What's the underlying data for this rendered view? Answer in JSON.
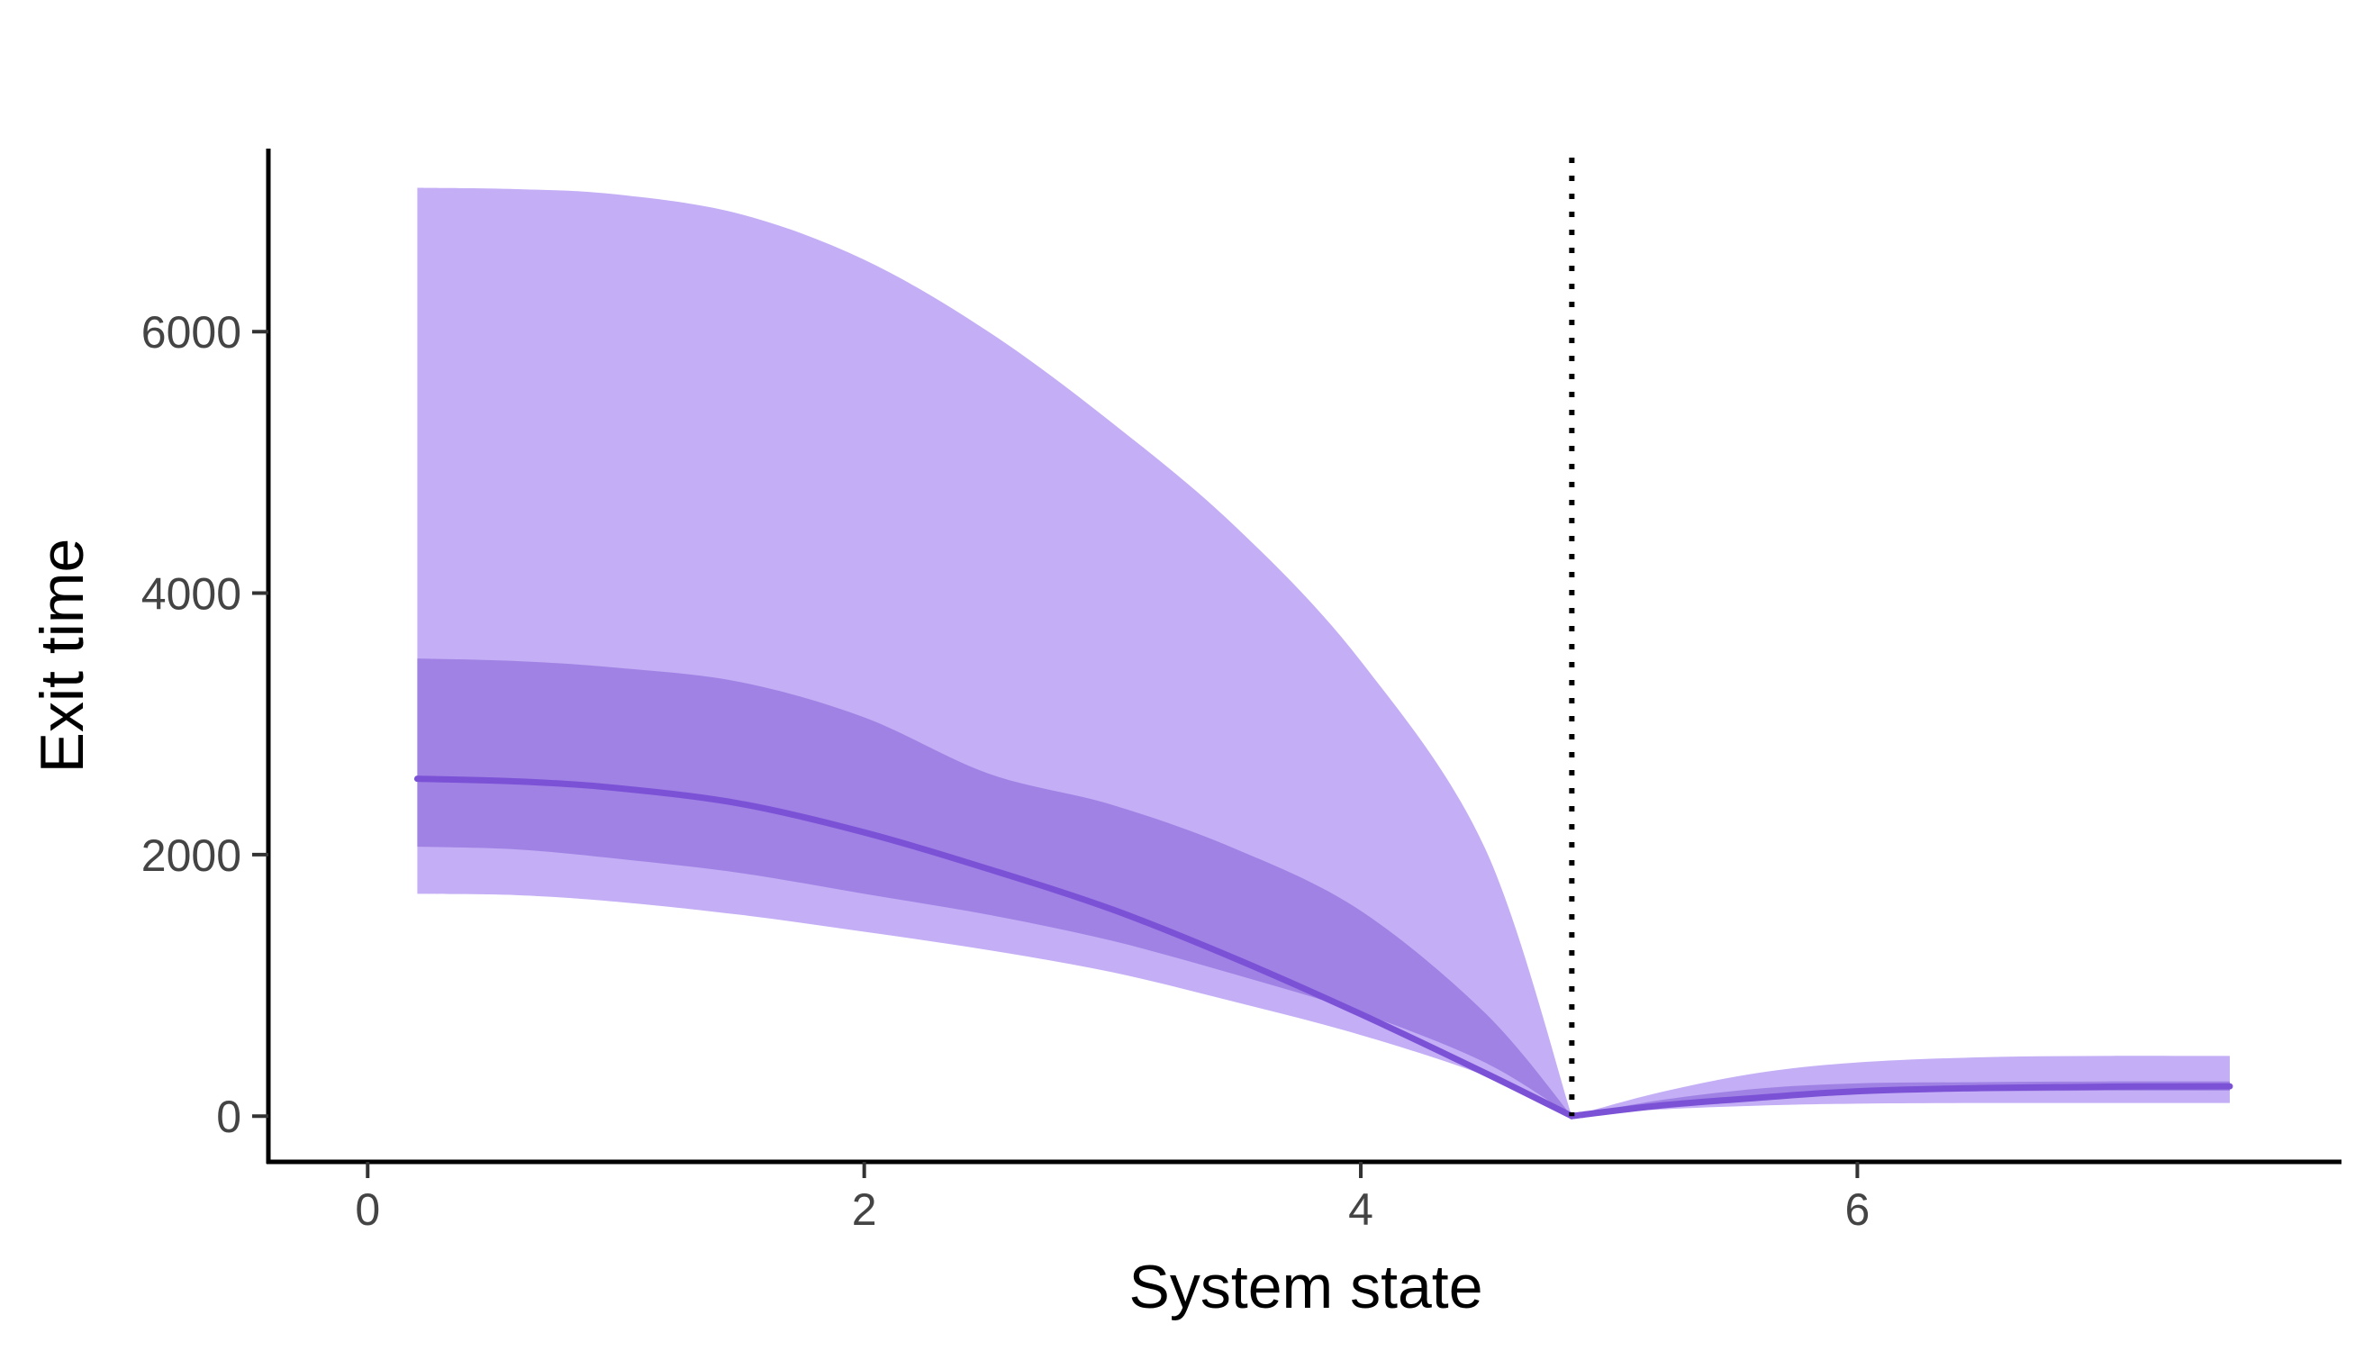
{
  "chart_data": {
    "type": "area",
    "title": "",
    "xlabel": "System state",
    "ylabel": "Exit time",
    "xlim": [
      -0.4,
      7.95
    ],
    "ylim": [
      -350,
      7400
    ],
    "x_ticks": [
      0,
      2,
      4,
      6
    ],
    "y_ticks": [
      0,
      2000,
      4000,
      6000
    ],
    "grid": false,
    "legend": "none",
    "threshold_x": 4.85,
    "colors": {
      "outer_band": "#c4aef5",
      "inner_band": "#a082e4",
      "median_line": "#7b52d6",
      "threshold_line": "#000000"
    },
    "series": [
      {
        "role": "outer_band",
        "x": [
          0.2,
          0.6,
          1.0,
          1.5,
          2.0,
          2.5,
          3.0,
          3.5,
          4.0,
          4.5,
          4.85,
          5.2,
          5.6,
          6.0,
          6.5,
          7.0,
          7.5
        ],
        "lower": [
          1700,
          1690,
          1640,
          1540,
          1410,
          1270,
          1100,
          870,
          620,
          310,
          0,
          50,
          80,
          95,
          100,
          100,
          100
        ],
        "upper": [
          7100,
          7090,
          7050,
          6900,
          6550,
          6000,
          5300,
          4500,
          3480,
          2050,
          0,
          180,
          330,
          410,
          450,
          460,
          460
        ]
      },
      {
        "role": "inner_band",
        "x": [
          0.2,
          0.6,
          1.0,
          1.5,
          2.0,
          2.5,
          3.0,
          3.5,
          4.0,
          4.5,
          4.85,
          5.2,
          5.6,
          6.0,
          6.5,
          7.0,
          7.5
        ],
        "lower": [
          2060,
          2040,
          1970,
          1860,
          1700,
          1540,
          1340,
          1080,
          790,
          410,
          0,
          90,
          150,
          180,
          190,
          195,
          195
        ],
        "upper": [
          3500,
          3480,
          3430,
          3320,
          3050,
          2620,
          2380,
          2040,
          1570,
          790,
          0,
          120,
          210,
          250,
          260,
          265,
          265
        ]
      },
      {
        "role": "median_line",
        "x": [
          0.2,
          0.6,
          1.0,
          1.5,
          2.0,
          2.5,
          3.0,
          3.5,
          4.0,
          4.5,
          4.85,
          5.2,
          5.6,
          6.0,
          6.5,
          7.0,
          7.5
        ],
        "y": [
          2580,
          2560,
          2510,
          2390,
          2170,
          1890,
          1580,
          1200,
          780,
          330,
          0,
          80,
          140,
          190,
          215,
          225,
          228
        ]
      }
    ]
  }
}
